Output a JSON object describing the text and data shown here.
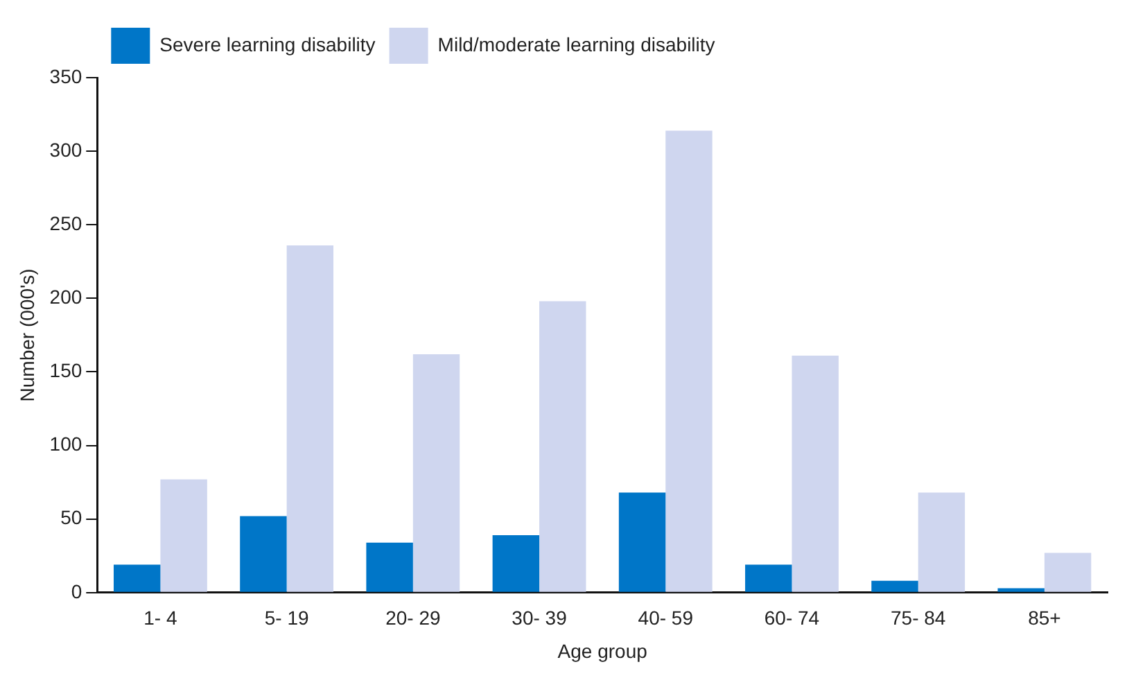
{
  "chart_data": {
    "type": "bar",
    "xlabel": "Age group",
    "ylabel": "Number (000's)",
    "categories": [
      "1- 4",
      "5- 19",
      "20- 29",
      "30- 39",
      "40- 59",
      "60- 74",
      "75- 84",
      "85+"
    ],
    "series": [
      {
        "name": "Severe learning disability",
        "color": "#0076c8",
        "values": [
          19,
          52,
          34,
          39,
          68,
          19,
          8,
          3
        ]
      },
      {
        "name": "Mild/moderate learning disability",
        "color": "#cfd6ef",
        "values": [
          77,
          236,
          162,
          198,
          314,
          161,
          68,
          27
        ]
      }
    ],
    "ylim": [
      0,
      350
    ],
    "yticks": [
      0,
      50,
      100,
      150,
      200,
      250,
      300,
      350
    ],
    "grid": false,
    "legend": "top left"
  }
}
